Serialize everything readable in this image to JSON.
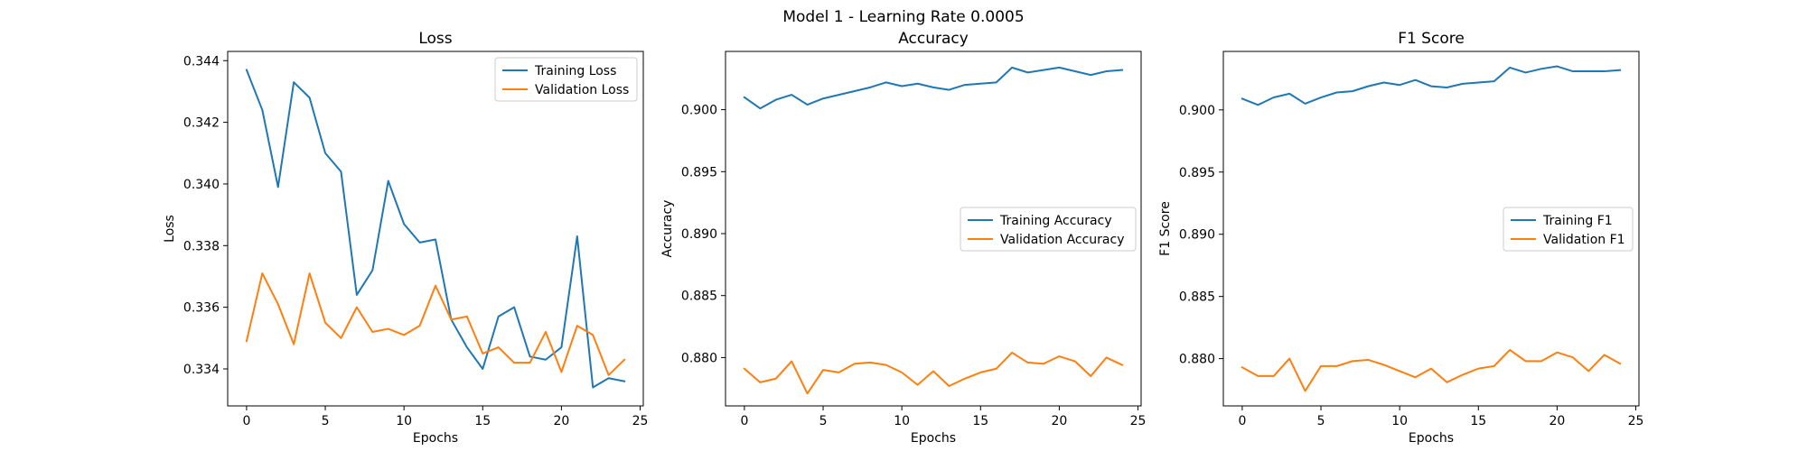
{
  "suptitle": "Model 1 - Learning Rate 0.0005",
  "colors": {
    "training": "#1f77b4",
    "validation": "#ff7f0e"
  },
  "chart_data": [
    {
      "type": "line",
      "title": "Loss",
      "xlabel": "Epochs",
      "ylabel": "Loss",
      "xlim": [
        -1.2,
        25.2
      ],
      "ylim": [
        0.3328,
        0.3443
      ],
      "xticks": [
        0,
        5,
        10,
        15,
        20,
        25
      ],
      "yticks": [
        0.334,
        0.336,
        0.338,
        0.34,
        0.342,
        0.344
      ],
      "ytick_labels": [
        "0.334",
        "0.336",
        "0.338",
        "0.340",
        "0.342",
        "0.344"
      ],
      "legend": "upper right",
      "x": [
        0,
        1,
        2,
        3,
        4,
        5,
        6,
        7,
        8,
        9,
        10,
        11,
        12,
        13,
        14,
        15,
        16,
        17,
        18,
        19,
        20,
        21,
        22,
        23,
        24
      ],
      "series": [
        {
          "name": "Training Loss",
          "color_key": "training",
          "values": [
            0.3437,
            0.3424,
            0.3399,
            0.3433,
            0.3428,
            0.341,
            0.3404,
            0.3364,
            0.3372,
            0.3401,
            0.3387,
            0.3381,
            0.3382,
            0.3356,
            0.3347,
            0.334,
            0.3357,
            0.336,
            0.3344,
            0.3343,
            0.3347,
            0.3383,
            0.3334,
            0.3337,
            0.3336
          ]
        },
        {
          "name": "Validation Loss",
          "color_key": "validation",
          "values": [
            0.3349,
            0.3371,
            0.3361,
            0.3348,
            0.3371,
            0.3355,
            0.335,
            0.336,
            0.3352,
            0.3353,
            0.3351,
            0.3354,
            0.3367,
            0.3356,
            0.3357,
            0.3345,
            0.3347,
            0.3342,
            0.3342,
            0.3352,
            0.3339,
            0.3354,
            0.3351,
            0.3338,
            0.3343
          ]
        }
      ]
    },
    {
      "type": "line",
      "title": "Accuracy",
      "xlabel": "Epochs",
      "ylabel": "Accuracy",
      "xlim": [
        -1.2,
        25.2
      ],
      "ylim": [
        0.8761,
        0.9047
      ],
      "xticks": [
        0,
        5,
        10,
        15,
        20,
        25
      ],
      "yticks": [
        0.88,
        0.885,
        0.89,
        0.895,
        0.9
      ],
      "ytick_labels": [
        "0.880",
        "0.885",
        "0.890",
        "0.895",
        "0.900"
      ],
      "legend": "center right",
      "x": [
        0,
        1,
        2,
        3,
        4,
        5,
        6,
        7,
        8,
        9,
        10,
        11,
        12,
        13,
        14,
        15,
        16,
        17,
        18,
        19,
        20,
        21,
        22,
        23,
        24
      ],
      "series": [
        {
          "name": "Training Accuracy",
          "color_key": "training",
          "values": [
            0.901,
            0.9001,
            0.9008,
            0.9012,
            0.9004,
            0.9009,
            0.9012,
            0.9015,
            0.9018,
            0.9022,
            0.9019,
            0.9021,
            0.9018,
            0.9016,
            0.902,
            0.9021,
            0.9022,
            0.9034,
            0.903,
            0.9032,
            0.9034,
            0.9031,
            0.9028,
            0.9031,
            0.9032
          ]
        },
        {
          "name": "Validation Accuracy",
          "color_key": "validation",
          "values": [
            0.8791,
            0.878,
            0.8783,
            0.8797,
            0.8771,
            0.879,
            0.8788,
            0.8795,
            0.8796,
            0.8794,
            0.8788,
            0.8778,
            0.8789,
            0.8777,
            0.8783,
            0.8788,
            0.8791,
            0.8804,
            0.8796,
            0.8795,
            0.8801,
            0.8797,
            0.8785,
            0.88,
            0.8794
          ]
        }
      ]
    },
    {
      "type": "line",
      "title": "F1 Score",
      "xlabel": "Epochs",
      "ylabel": "F1 Score",
      "xlim": [
        -1.2,
        25.2
      ],
      "ylim": [
        0.8762,
        0.9047
      ],
      "xticks": [
        0,
        5,
        10,
        15,
        20,
        25
      ],
      "yticks": [
        0.88,
        0.885,
        0.89,
        0.895,
        0.9
      ],
      "ytick_labels": [
        "0.880",
        "0.885",
        "0.890",
        "0.895",
        "0.900"
      ],
      "legend": "center right",
      "x": [
        0,
        1,
        2,
        3,
        4,
        5,
        6,
        7,
        8,
        9,
        10,
        11,
        12,
        13,
        14,
        15,
        16,
        17,
        18,
        19,
        20,
        21,
        22,
        23,
        24
      ],
      "series": [
        {
          "name": "Training F1",
          "color_key": "training",
          "values": [
            0.9009,
            0.9004,
            0.901,
            0.9013,
            0.9005,
            0.901,
            0.9014,
            0.9015,
            0.9019,
            0.9022,
            0.902,
            0.9024,
            0.9019,
            0.9018,
            0.9021,
            0.9022,
            0.9023,
            0.9034,
            0.903,
            0.9033,
            0.9035,
            0.9031,
            0.9031,
            0.9031,
            0.9032
          ]
        },
        {
          "name": "Validation F1",
          "color_key": "validation",
          "values": [
            0.8793,
            0.8786,
            0.8786,
            0.88,
            0.8774,
            0.8794,
            0.8794,
            0.8798,
            0.8799,
            0.8795,
            0.879,
            0.8785,
            0.8792,
            0.8781,
            0.8787,
            0.8792,
            0.8794,
            0.8807,
            0.8798,
            0.8798,
            0.8805,
            0.8801,
            0.879,
            0.8803,
            0.8796
          ]
        }
      ]
    }
  ]
}
